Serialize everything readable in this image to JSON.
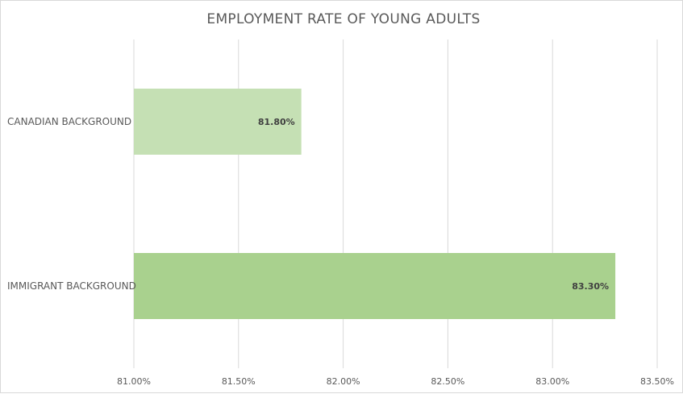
{
  "chart_data": {
    "type": "bar",
    "orientation": "horizontal",
    "title": "EMPLOYMENT RATE OF YOUNG ADULTS",
    "categories": [
      "CANADIAN BACKGROUND",
      "IMMIGRANT BACKGROUND"
    ],
    "values": [
      81.8,
      83.3
    ],
    "data_labels": [
      "81.80%",
      "83.30%"
    ],
    "bar_colors": [
      "#c5e0b4",
      "#a9d18e"
    ],
    "xlim": [
      81.0,
      83.5
    ],
    "x_ticks": [
      81.0,
      81.5,
      82.0,
      82.5,
      83.0,
      83.5
    ],
    "x_tick_labels": [
      "81.00%",
      "81.50%",
      "82.00%",
      "82.50%",
      "83.00%",
      "83.50%"
    ],
    "gridlines": true,
    "gridline_color": "#d9d9d9",
    "legend": "none"
  }
}
